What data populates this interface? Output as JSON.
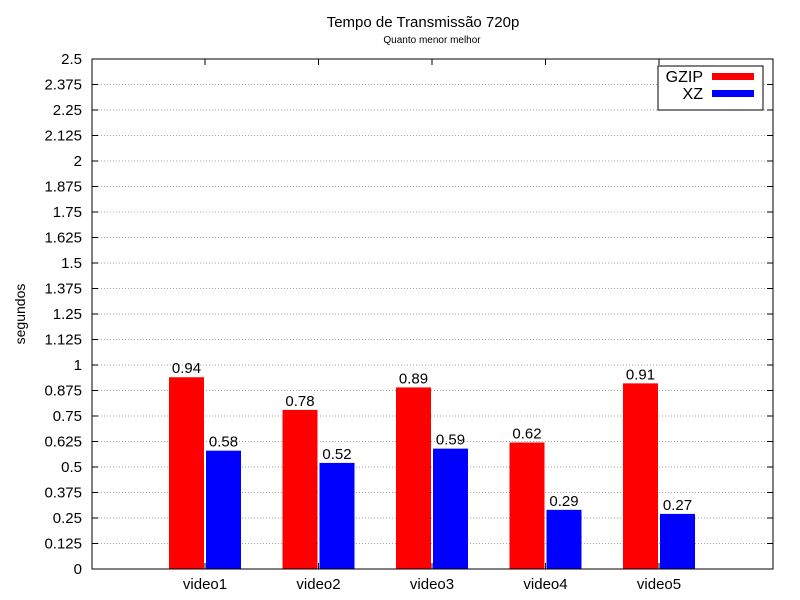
{
  "chart_data": {
    "type": "bar",
    "title": "Tempo de Transmissão 720p",
    "subtitle": "Quanto menor melhor",
    "xlabel": "",
    "ylabel": "segundos",
    "categories": [
      "video1",
      "video2",
      "video3",
      "video4",
      "video5"
    ],
    "series": [
      {
        "name": "GZIP",
        "color": "#ff0000",
        "values": [
          0.94,
          0.78,
          0.89,
          0.62,
          0.91
        ],
        "labels": [
          "0.94",
          "0.78",
          "0.89",
          "0.62",
          "0.91"
        ]
      },
      {
        "name": "XZ",
        "color": "#0000ff",
        "values": [
          0.58,
          0.52,
          0.59,
          0.29,
          0.27
        ],
        "labels": [
          "0.58",
          "0.52",
          "0.59",
          "0.29",
          "0.27"
        ]
      }
    ],
    "ylim": [
      0,
      2.5
    ],
    "yticks": [
      "0",
      "0.125",
      "0.25",
      "0.375",
      "0.5",
      "0.625",
      "0.75",
      "0.875",
      "1",
      "1.125",
      "1.25",
      "1.375",
      "1.5",
      "1.625",
      "1.75",
      "1.875",
      "2",
      "2.125",
      "2.25",
      "2.375",
      "2.5"
    ],
    "grid": true,
    "legend_position": "top-right"
  }
}
